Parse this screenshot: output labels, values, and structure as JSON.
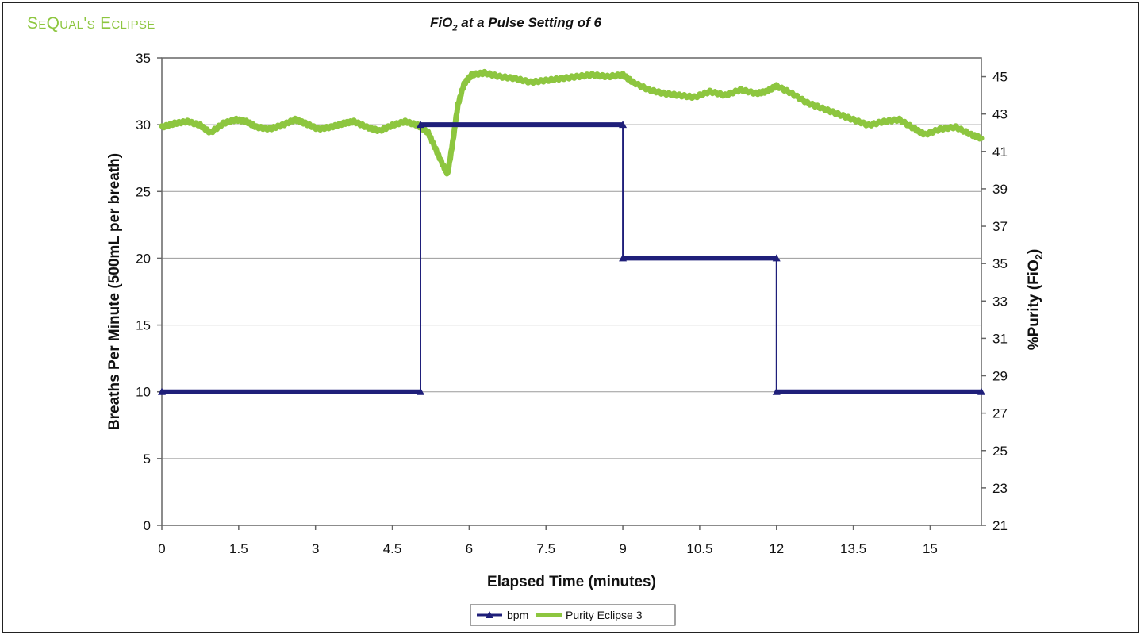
{
  "brand": {
    "text": "SeQual's Eclipse",
    "color": "#8dc63f"
  },
  "chart_data": {
    "type": "line",
    "title": "FiO",
    "title_sub": "2",
    "title_suffix": " at a Pulse Setting of 6",
    "xlabel": "Elapsed Time (minutes)",
    "ylabel": "Breaths Per Minute (500mL per breath)",
    "y2label": "%Purity (FiO",
    "y2label_sub": "2",
    "y2label_suffix": ")",
    "xlim": [
      0,
      16
    ],
    "ylim": [
      0,
      35
    ],
    "y2lim": [
      21,
      46
    ],
    "x_ticks": [
      0,
      1.5,
      3,
      4.5,
      6,
      7.5,
      9,
      10.5,
      12,
      13.5,
      15
    ],
    "y_ticks": [
      0,
      5,
      10,
      15,
      20,
      25,
      30,
      35
    ],
    "y2_ticks": [
      21,
      23,
      25,
      27,
      29,
      31,
      33,
      35,
      37,
      39,
      41,
      43,
      45
    ],
    "grid": "horizontal",
    "legend": "bottom-center",
    "series": [
      {
        "name": "bpm",
        "axis": "left",
        "color": "#1f1f7a",
        "marker": "triangle",
        "x": [
          0,
          5.05,
          5.05,
          9,
          9,
          12,
          12,
          16
        ],
        "y": [
          10,
          10,
          30,
          30,
          20,
          20,
          10,
          10
        ]
      },
      {
        "name": "Purity Eclipse 3",
        "axis": "right",
        "color": "#8dc63f",
        "x": [
          0,
          0.25,
          0.5,
          0.75,
          0.95,
          1.2,
          1.45,
          1.65,
          1.85,
          2.1,
          2.35,
          2.6,
          2.8,
          3.05,
          3.3,
          3.55,
          3.75,
          4.0,
          4.25,
          4.5,
          4.75,
          5.0,
          5.2,
          5.35,
          5.5,
          5.58,
          5.68,
          5.78,
          5.9,
          6.05,
          6.3,
          6.6,
          6.9,
          7.2,
          7.5,
          7.8,
          8.1,
          8.4,
          8.7,
          9.0,
          9.2,
          9.5,
          9.8,
          10.1,
          10.4,
          10.7,
          11.0,
          11.3,
          11.6,
          11.8,
          12.0,
          12.3,
          12.6,
          12.9,
          13.2,
          13.5,
          13.8,
          14.1,
          14.4,
          14.7,
          14.9,
          15.2,
          15.5,
          15.8,
          16.0
        ],
        "y": [
          42.3,
          42.5,
          42.6,
          42.4,
          42.0,
          42.5,
          42.7,
          42.6,
          42.3,
          42.2,
          42.4,
          42.7,
          42.5,
          42.2,
          42.3,
          42.5,
          42.6,
          42.3,
          42.1,
          42.4,
          42.6,
          42.4,
          42.0,
          41.1,
          40.2,
          39.8,
          41.5,
          43.5,
          44.6,
          45.1,
          45.2,
          45.0,
          44.9,
          44.7,
          44.8,
          44.9,
          45.0,
          45.1,
          45.0,
          45.1,
          44.7,
          44.3,
          44.1,
          44.0,
          43.9,
          44.2,
          44.0,
          44.3,
          44.1,
          44.2,
          44.5,
          44.1,
          43.6,
          43.3,
          43.0,
          42.7,
          42.4,
          42.6,
          42.7,
          42.2,
          41.9,
          42.2,
          42.3,
          41.9,
          41.7
        ]
      }
    ]
  }
}
